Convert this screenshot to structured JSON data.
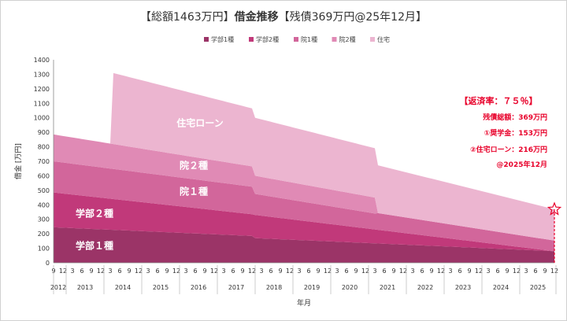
{
  "title": {
    "part1": "【総額1463万円】",
    "part2": "借金推移",
    "part3": "【残債369万円@25年12月】"
  },
  "annotation": {
    "lines": [
      "【返済率：７５％】",
      "残債総額：369万円",
      "①奨学金：153万円",
      "②住宅ローン：216万円",
      "@2025年12月"
    ]
  },
  "chart_data": {
    "type": "area",
    "stacked": true,
    "xlabel": "年月",
    "ylabel": "借金 [万円]",
    "ylim": [
      0,
      1400
    ],
    "yticks": [
      0,
      100,
      200,
      300,
      400,
      500,
      600,
      700,
      800,
      900,
      1000,
      1100,
      1200,
      1300,
      1400
    ],
    "x_range": [
      "2012-09",
      "2025-12"
    ],
    "month_ticks": [
      "9",
      "12",
      "3",
      "6",
      "9",
      "12"
    ],
    "years": [
      "2012",
      "2013",
      "2014",
      "2015",
      "2016",
      "2017",
      "2018",
      "2019",
      "2020",
      "2021",
      "2022",
      "2023",
      "2024",
      "2025"
    ],
    "legend_position": "top",
    "grid": false,
    "series": [
      {
        "name": "学部1種",
        "label": "学部１種",
        "color": "#9b3467",
        "x": [
          "2012-09",
          "2017-12",
          "2018-01",
          "2025-12"
        ],
        "values": [
          245,
          185,
          170,
          80
        ]
      },
      {
        "name": "学部2種",
        "label": "学部２種",
        "color": "#c1397a",
        "x": [
          "2012-09",
          "2017-12",
          "2018-01",
          "2025-12"
        ],
        "values": [
          240,
          150,
          160,
          0
        ]
      },
      {
        "name": "院1種",
        "label": "院１種",
        "color": "#d2669b",
        "x": [
          "2012-09",
          "2017-12",
          "2018-01",
          "2021-03",
          "2021-04",
          "2025-12"
        ],
        "values": [
          215,
          190,
          145,
          110,
          115,
          73
        ]
      },
      {
        "name": "院2種",
        "label": "院２種",
        "color": "#e08ab5",
        "x": [
          "2012-09",
          "2017-12",
          "2018-01",
          "2021-03",
          "2021-04",
          "2025-12"
        ],
        "values": [
          185,
          140,
          125,
          110,
          0,
          0
        ]
      },
      {
        "name": "住宅",
        "label": "住宅ローン",
        "color": "#ecb5d0",
        "x": [
          "2014-03",
          "2014-04",
          "2017-12",
          "2018-01",
          "2021-03",
          "2021-04",
          "2025-12"
        ],
        "values": [
          0,
          490,
          400,
          400,
          340,
          330,
          216
        ]
      }
    ]
  }
}
